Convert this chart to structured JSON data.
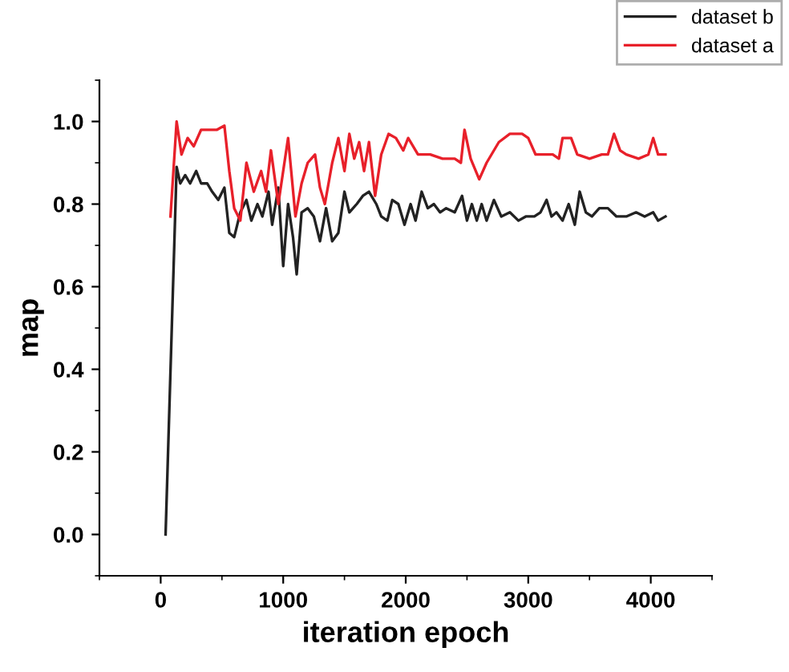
{
  "chart_data": {
    "type": "line",
    "xlabel": "iteration epoch",
    "ylabel": "map",
    "xlim": [
      -500,
      4500
    ],
    "ylim": [
      -0.1,
      1.1
    ],
    "xticks": [
      0,
      1000,
      2000,
      3000,
      4000
    ],
    "yticks": [
      {
        "value": 0,
        "label": "0.0"
      },
      {
        "value": 0.2,
        "label": "0.2"
      },
      {
        "value": 0.4,
        "label": "0.4"
      },
      {
        "value": 0.6,
        "label": "0.6"
      },
      {
        "value": 0.8,
        "label": "0.8"
      },
      {
        "value": 1,
        "label": "1.0"
      }
    ],
    "grid": false,
    "legend": "top right",
    "marker": "none",
    "line_style": "solid",
    "series": [
      {
        "name": "dataset b",
        "color": "#222222",
        "x": [
          40,
          130,
          160,
          200,
          240,
          290,
          330,
          380,
          420,
          470,
          520,
          560,
          600,
          650,
          700,
          740,
          790,
          830,
          880,
          910,
          960,
          1000,
          1040,
          1080,
          1110,
          1150,
          1200,
          1250,
          1300,
          1350,
          1400,
          1450,
          1500,
          1540,
          1600,
          1650,
          1700,
          1760,
          1800,
          1850,
          1890,
          1940,
          1990,
          2040,
          2080,
          2130,
          2180,
          2230,
          2280,
          2330,
          2400,
          2460,
          2500,
          2540,
          2580,
          2620,
          2660,
          2720,
          2780,
          2850,
          2920,
          2980,
          3050,
          3100,
          3150,
          3190,
          3230,
          3280,
          3330,
          3380,
          3420,
          3470,
          3520,
          3580,
          3650,
          3720,
          3800,
          3880,
          3950,
          4020,
          4060,
          4120
        ],
        "values": [
          0.0,
          0.89,
          0.85,
          0.87,
          0.85,
          0.88,
          0.85,
          0.85,
          0.83,
          0.81,
          0.84,
          0.73,
          0.72,
          0.78,
          0.81,
          0.76,
          0.8,
          0.77,
          0.83,
          0.75,
          0.84,
          0.65,
          0.8,
          0.72,
          0.63,
          0.78,
          0.79,
          0.77,
          0.71,
          0.79,
          0.71,
          0.73,
          0.83,
          0.78,
          0.8,
          0.82,
          0.83,
          0.8,
          0.77,
          0.76,
          0.81,
          0.8,
          0.75,
          0.8,
          0.76,
          0.83,
          0.79,
          0.8,
          0.78,
          0.79,
          0.78,
          0.82,
          0.76,
          0.8,
          0.76,
          0.8,
          0.76,
          0.81,
          0.77,
          0.78,
          0.76,
          0.77,
          0.77,
          0.78,
          0.81,
          0.77,
          0.78,
          0.76,
          0.8,
          0.75,
          0.83,
          0.78,
          0.77,
          0.79,
          0.79,
          0.77,
          0.77,
          0.78,
          0.77,
          0.78,
          0.76,
          0.77
        ]
      },
      {
        "name": "dataset a",
        "color": "#e8202a",
        "x": [
          80,
          130,
          170,
          220,
          270,
          330,
          400,
          460,
          520,
          560,
          600,
          650,
          700,
          760,
          820,
          860,
          900,
          960,
          1040,
          1100,
          1150,
          1200,
          1260,
          1300,
          1340,
          1400,
          1450,
          1500,
          1540,
          1580,
          1620,
          1660,
          1700,
          1750,
          1800,
          1860,
          1920,
          1980,
          2020,
          2100,
          2200,
          2300,
          2400,
          2450,
          2480,
          2530,
          2600,
          2660,
          2760,
          2850,
          2950,
          3000,
          3060,
          3200,
          3250,
          3280,
          3350,
          3400,
          3500,
          3600,
          3650,
          3700,
          3750,
          3800,
          3900,
          3980,
          4020,
          4060,
          4120
        ],
        "values": [
          0.77,
          1.0,
          0.92,
          0.96,
          0.94,
          0.98,
          0.98,
          0.98,
          0.99,
          0.88,
          0.79,
          0.76,
          0.9,
          0.83,
          0.88,
          0.83,
          0.93,
          0.8,
          0.96,
          0.77,
          0.85,
          0.9,
          0.92,
          0.84,
          0.8,
          0.9,
          0.96,
          0.88,
          0.97,
          0.91,
          0.95,
          0.88,
          0.95,
          0.82,
          0.92,
          0.97,
          0.96,
          0.93,
          0.96,
          0.92,
          0.92,
          0.91,
          0.91,
          0.9,
          0.98,
          0.91,
          0.86,
          0.9,
          0.95,
          0.97,
          0.97,
          0.96,
          0.92,
          0.92,
          0.91,
          0.96,
          0.96,
          0.92,
          0.91,
          0.92,
          0.92,
          0.97,
          0.93,
          0.92,
          0.91,
          0.92,
          0.96,
          0.92,
          0.92
        ]
      }
    ]
  }
}
